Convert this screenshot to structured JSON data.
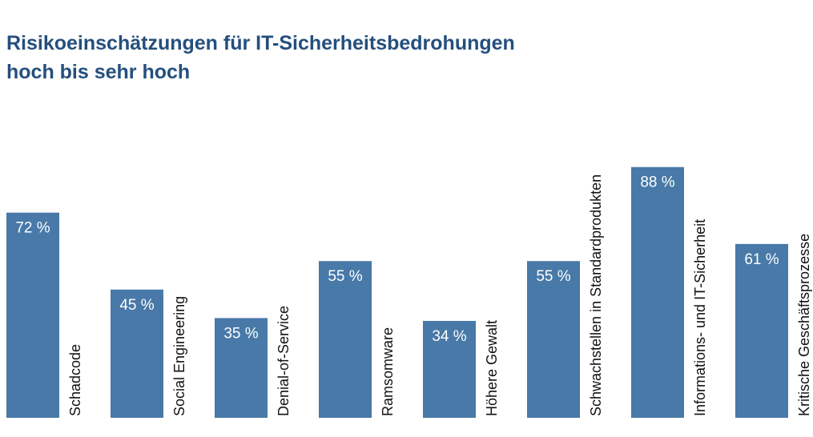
{
  "title_line1": "Risikoeinschätzungen für IT-Sicherheitsbedrohungen",
  "title_line2": "hoch bis sehr hoch",
  "chart_data": {
    "type": "bar",
    "title": "Risikoeinschätzungen für IT-Sicherheitsbedrohungen hoch bis sehr hoch",
    "categories": [
      "Schadcode",
      "Social Engineering",
      "Denial-of-Service",
      "Ramsomware",
      "Höhere Gewalt",
      "Schwachstellen in Standardprodukten",
      "Informations- und IT-Sicherheit",
      "Kritische Geschäftsprozesse"
    ],
    "values": [
      72,
      45,
      35,
      55,
      34,
      55,
      88,
      61
    ],
    "value_labels": [
      "72 %",
      "45 %",
      "35 %",
      "55 %",
      "34 %",
      "55 %",
      "88 %",
      "61 %"
    ],
    "unit": "%",
    "ylim": [
      0,
      100
    ],
    "grid": false,
    "legend": "none",
    "bar_color": "#4879a8",
    "title_color": "#244f7d"
  }
}
